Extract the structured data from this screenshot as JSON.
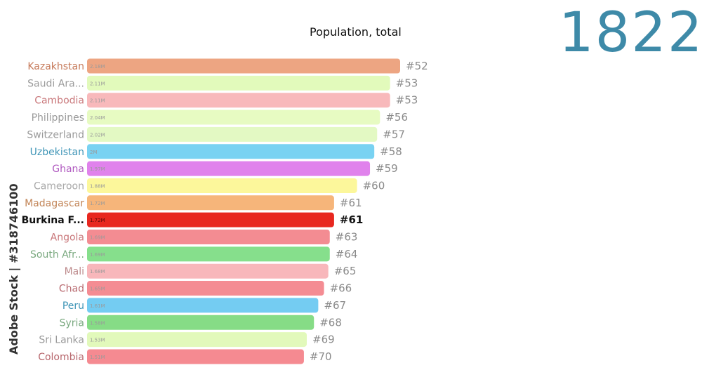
{
  "chart_data": {
    "type": "bar",
    "title": "Population, total",
    "year": "1822",
    "categories": [
      "Kazakhstan",
      "Saudi Ara...",
      "Cambodia",
      "Philippines",
      "Switzerland",
      "Uzbekistan",
      "Ghana",
      "Cameroon",
      "Madagascar",
      "Burkina F...",
      "Angola",
      "South Afr...",
      "Mali",
      "Chad",
      "Peru",
      "Syria",
      "Sri Lanka",
      "Colombia"
    ],
    "values": [
      2.18,
      2.11,
      2.11,
      2.04,
      2.02,
      2.0,
      1.97,
      1.88,
      1.72,
      1.72,
      1.69,
      1.69,
      1.68,
      1.65,
      1.61,
      1.58,
      1.53,
      1.51
    ],
    "value_labels": [
      "2.18M",
      "2.11M",
      "2.11M",
      "2.04M",
      "2.02M",
      "2M",
      "1.97M",
      "1.88M",
      "1.72M",
      "1.72M",
      "1.69M",
      "1.69M",
      "1.68M",
      "1.65M",
      "1.61M",
      "1.58M",
      "1.53M",
      "1.51M"
    ],
    "ranks": [
      "#52",
      "#53",
      "#53",
      "#56",
      "#57",
      "#58",
      "#59",
      "#60",
      "#61",
      "#61",
      "#63",
      "#64",
      "#65",
      "#66",
      "#67",
      "#68",
      "#69",
      "#70"
    ],
    "colors": [
      "#eda582",
      "#e2fabb",
      "#f8b9bb",
      "#e7fbc2",
      "#e3f9c3",
      "#79d2f2",
      "#e082ec",
      "#fcf79b",
      "#f6b57a",
      "#e8271f",
      "#f38c92",
      "#86df8c",
      "#f8b7bb",
      "#f48c93",
      "#74ccf2",
      "#86dc86",
      "#e2f9bb",
      "#f58a91"
    ],
    "label_colors": [
      "#c67a5a",
      "#9a9a9a",
      "#c9777a",
      "#9a9a9a",
      "#9a9a9a",
      "#3d94b6",
      "#b05ac0",
      "#a9a9a9",
      "#c28456",
      "#111111",
      "#c9777a",
      "#7aa97f",
      "#bd8a8c",
      "#b7676d",
      "#3d94b6",
      "#7aa97f",
      "#9a9a9a",
      "#b7676d"
    ],
    "highlight": "Burkina F..."
  },
  "credit": "Adobe Stock | #318746100"
}
